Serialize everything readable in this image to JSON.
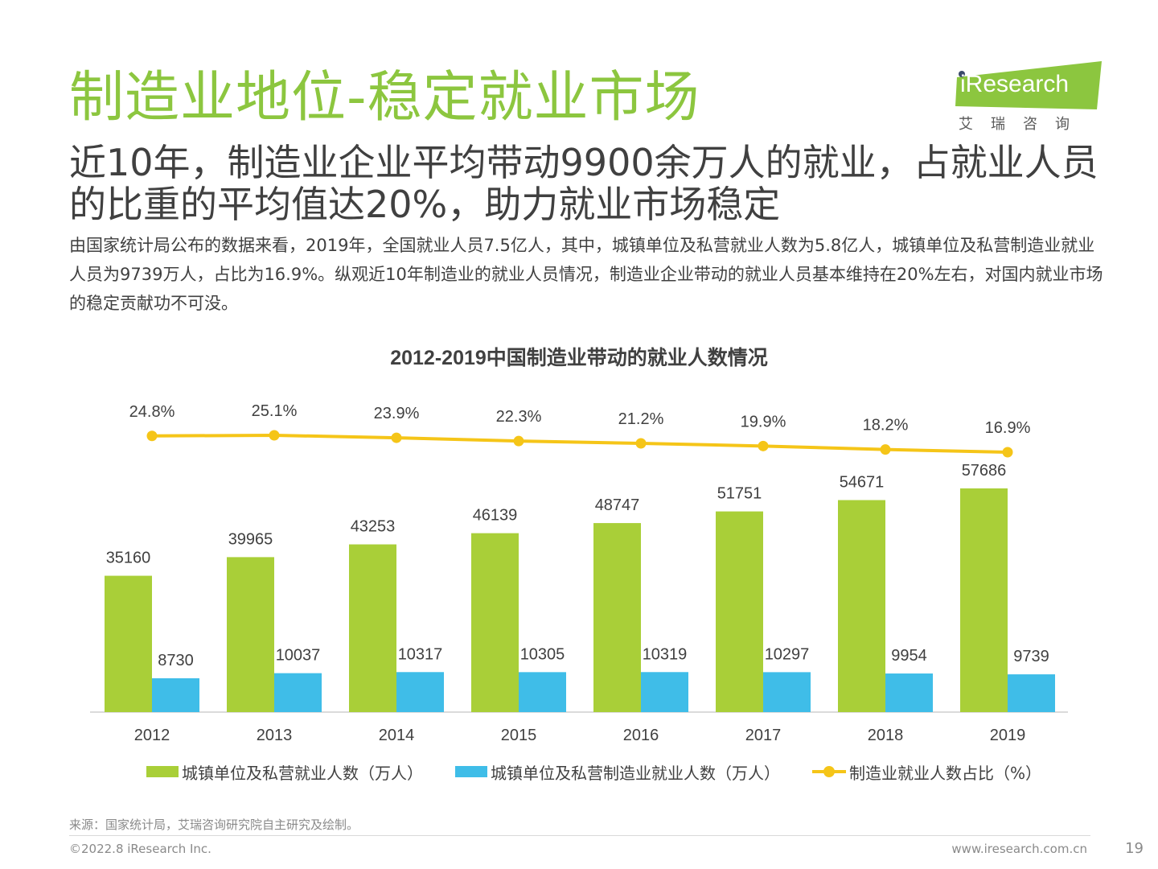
{
  "header": {
    "title": "制造业地位-稳定就业市场",
    "headline": "近10年，制造业企业平均带动9900余万人的就业，占就业人员的比重的平均值达20%，助力就业市场稳定",
    "description": "由国家统计局公布的数据来看，2019年，全国就业人员7.5亿人，其中，城镇单位及私营就业人数为5.8亿人，城镇单位及私营制造业就业人员为9739万人，占比为16.9%。纵观近10年制造业的就业人员情况，制造业企业带动的就业人员基本维持在20%左右，对国内就业市场的稳定贡献功不可没。"
  },
  "logo": {
    "name": "iResearch",
    "subtitle": "艾瑞咨询",
    "accent": "#8cc63f"
  },
  "colors": {
    "bar_total": "#a9cf38",
    "bar_manufacturing": "#3fbde8",
    "line_share": "#f5c518"
  },
  "chart_data": {
    "type": "bar",
    "title": "2012-2019中国制造业带动的就业人数情况",
    "categories": [
      "2012",
      "2013",
      "2014",
      "2015",
      "2016",
      "2017",
      "2018",
      "2019"
    ],
    "series": [
      {
        "name": "城镇单位及私营就业人数（万人）",
        "type": "bar",
        "values": [
          35160,
          39965,
          43253,
          46139,
          48747,
          51751,
          54671,
          57686
        ]
      },
      {
        "name": "城镇单位及私营制造业就业人数（万人）",
        "type": "bar",
        "values": [
          8730,
          10037,
          10317,
          10305,
          10319,
          10297,
          9954,
          9739
        ]
      },
      {
        "name": "制造业就业人数占比（%）",
        "type": "line",
        "values": [
          24.8,
          25.1,
          23.9,
          22.3,
          21.2,
          19.9,
          18.2,
          16.9
        ],
        "labels": [
          "24.8%",
          "25.1%",
          "23.9%",
          "22.3%",
          "21.2%",
          "19.9%",
          "18.2%",
          "16.9%"
        ]
      }
    ],
    "legend": "bottom",
    "grid": false
  },
  "footer": {
    "source": "来源：国家统计局，艾瑞咨询研究院自主研究及绘制。",
    "copyright": "©2022.8 iResearch Inc.",
    "website": "www.iresearch.com.cn",
    "page_number": "19"
  }
}
